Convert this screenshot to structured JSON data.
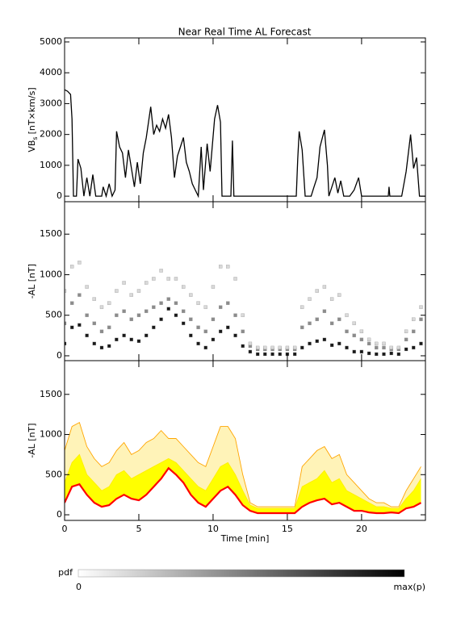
{
  "chart_data": [
    {
      "type": "line",
      "title": "Near Real Time AL Forecast",
      "ylabel": [
        "VB",
        "s",
        "[nT×km/s]"
      ],
      "color": "#000000",
      "xlim": [
        0,
        24.3
      ],
      "xticks": [
        0,
        5,
        10,
        15,
        20
      ],
      "ylim": [
        -180,
        5130
      ],
      "yticks": [
        0,
        1000,
        2000,
        3000,
        4000,
        5000
      ],
      "x": [
        0,
        0.2,
        0.4,
        0.5,
        0.6,
        0.8,
        0.9,
        1.1,
        1.3,
        1.5,
        1.7,
        1.9,
        2.1,
        2.3,
        2.5,
        2.6,
        2.8,
        3.0,
        3.2,
        3.4,
        3.5,
        3.7,
        3.9,
        4.1,
        4.3,
        4.5,
        4.7,
        4.9,
        5.1,
        5.3,
        5.5,
        5.8,
        6.0,
        6.2,
        6.4,
        6.6,
        6.8,
        7.0,
        7.2,
        7.4,
        7.6,
        7.8,
        8.0,
        8.2,
        8.4,
        8.6,
        8.8,
        9.0,
        9.2,
        9.35,
        9.6,
        9.8,
        10.1,
        10.3,
        10.5,
        10.6,
        11.2,
        11.3,
        11.4,
        15.6,
        15.7,
        15.8,
        16.0,
        16.2,
        16.6,
        16.8,
        17.0,
        17.2,
        17.5,
        17.7,
        17.8,
        18.2,
        18.4,
        18.6,
        18.8,
        19.2,
        19.5,
        19.8,
        20.0,
        21.8,
        21.85,
        21.9,
        22.7,
        23.0,
        23.3,
        23.5,
        23.7,
        23.9,
        24.3
      ],
      "values": [
        3450,
        3400,
        3300,
        2500,
        0,
        0,
        1200,
        900,
        0,
        600,
        0,
        700,
        0,
        0,
        0,
        300,
        0,
        400,
        0,
        200,
        2100,
        1600,
        1400,
        600,
        1500,
        900,
        300,
        1100,
        400,
        1400,
        1900,
        2900,
        2000,
        2300,
        2100,
        2500,
        2200,
        2650,
        1900,
        600,
        1300,
        1600,
        1900,
        1100,
        800,
        400,
        200,
        0,
        1600,
        200,
        1700,
        800,
        2500,
        2950,
        2400,
        0,
        0,
        1800,
        0,
        0,
        1200,
        2100,
        1500,
        0,
        0,
        300,
        600,
        1600,
        2150,
        1000,
        0,
        600,
        100,
        500,
        0,
        0,
        200,
        600,
        0,
        0,
        300,
        0,
        0,
        800,
        2000,
        900,
        1250,
        0,
        0
      ]
    },
    {
      "type": "density",
      "ylabel": "-AL [nT]",
      "xlim": [
        0,
        24.3
      ],
      "xticks": [
        0,
        5,
        10,
        15,
        20
      ],
      "ylim": [
        -60,
        1900
      ],
      "yticks": [
        0,
        500,
        1000,
        1500
      ],
      "x": [
        0,
        0.5,
        1,
        1.5,
        2,
        2.5,
        3,
        3.5,
        4,
        4.5,
        5,
        5.5,
        6,
        6.5,
        7,
        7.5,
        8,
        8.5,
        9,
        9.5,
        10,
        10.5,
        11,
        11.5,
        12,
        12.5,
        13,
        13.5,
        14,
        14.5,
        15,
        15.5,
        16,
        16.5,
        17,
        17.5,
        18,
        18.5,
        19,
        19.5,
        20,
        20.5,
        21,
        21.5,
        22,
        22.5,
        23,
        23.5,
        24
      ],
      "series": [
        {
          "weight": 0.9,
          "values": [
            150,
            350,
            380,
            250,
            150,
            100,
            120,
            200,
            250,
            200,
            180,
            250,
            350,
            450,
            580,
            500,
            400,
            250,
            150,
            100,
            200,
            300,
            350,
            250,
            120,
            50,
            20,
            20,
            20,
            20,
            20,
            20,
            100,
            150,
            180,
            200,
            130,
            150,
            100,
            50,
            50,
            30,
            20,
            20,
            30,
            20,
            80,
            100,
            150
          ]
        },
        {
          "weight": 0.45,
          "values": [
            400,
            650,
            750,
            500,
            400,
            300,
            350,
            500,
            550,
            450,
            500,
            550,
            600,
            650,
            700,
            650,
            550,
            450,
            350,
            300,
            450,
            600,
            650,
            500,
            300,
            120,
            80,
            80,
            80,
            80,
            80,
            80,
            350,
            400,
            450,
            550,
            400,
            450,
            300,
            250,
            200,
            150,
            100,
            100,
            80,
            80,
            200,
            300,
            450
          ]
        },
        {
          "weight": 0.15,
          "values": [
            800,
            1100,
            1150,
            850,
            700,
            600,
            650,
            800,
            900,
            750,
            800,
            900,
            950,
            1050,
            950,
            950,
            850,
            750,
            650,
            600,
            850,
            1100,
            1100,
            950,
            500,
            150,
            100,
            100,
            100,
            100,
            100,
            100,
            600,
            700,
            800,
            850,
            700,
            750,
            500,
            400,
            300,
            200,
            150,
            150,
            100,
            100,
            300,
            450,
            600
          ]
        }
      ]
    },
    {
      "type": "band",
      "ylabel": "-AL [nT]",
      "xlabel": "Time [min]",
      "xlim": [
        0,
        24.3
      ],
      "xticks": [
        0,
        5,
        10,
        15,
        20
      ],
      "ylim": [
        -70,
        1920
      ],
      "yticks": [
        0,
        500,
        1000,
        1500
      ],
      "x": [
        0,
        0.5,
        1,
        1.5,
        2,
        2.5,
        3,
        3.5,
        4,
        4.5,
        5,
        5.5,
        6,
        6.5,
        7,
        7.5,
        8,
        8.5,
        9,
        9.5,
        10,
        10.5,
        11,
        11.5,
        12,
        12.5,
        13,
        13.5,
        14,
        14.5,
        15,
        15.5,
        16,
        16.5,
        17,
        17.5,
        18,
        18.5,
        19,
        19.5,
        20,
        20.5,
        21,
        21.5,
        22,
        22.5,
        23,
        23.5,
        24
      ],
      "series": [
        {
          "color": "#ffa500",
          "fill": "#fff3b8",
          "values": [
            800,
            1100,
            1150,
            850,
            700,
            600,
            650,
            800,
            900,
            750,
            800,
            900,
            950,
            1050,
            950,
            950,
            850,
            750,
            650,
            600,
            850,
            1100,
            1100,
            950,
            500,
            150,
            100,
            100,
            100,
            100,
            100,
            100,
            600,
            700,
            800,
            850,
            700,
            750,
            500,
            400,
            300,
            200,
            150,
            150,
            100,
            100,
            300,
            450,
            600
          ]
        },
        {
          "color": "#ffee00",
          "fill": "#ffff00",
          "values": [
            400,
            650,
            750,
            500,
            400,
            300,
            350,
            500,
            550,
            450,
            500,
            550,
            600,
            650,
            700,
            650,
            550,
            450,
            350,
            300,
            450,
            600,
            650,
            500,
            300,
            120,
            80,
            80,
            80,
            80,
            80,
            80,
            350,
            400,
            450,
            550,
            400,
            450,
            300,
            250,
            200,
            150,
            100,
            100,
            80,
            80,
            200,
            300,
            450
          ]
        },
        {
          "color": "#ff0000",
          "fill": "#ffffff",
          "values": [
            150,
            350,
            380,
            250,
            150,
            100,
            120,
            200,
            250,
            200,
            180,
            250,
            350,
            450,
            580,
            500,
            400,
            250,
            150,
            100,
            200,
            300,
            350,
            250,
            120,
            50,
            20,
            20,
            20,
            20,
            20,
            20,
            100,
            150,
            180,
            200,
            130,
            150,
            100,
            50,
            50,
            30,
            20,
            20,
            30,
            20,
            80,
            100,
            150
          ]
        }
      ]
    },
    {
      "type": "colorbar",
      "label": "pdf",
      "min_label": "0",
      "max_label": "max(p)",
      "colors": [
        "#ffffff",
        "#000000"
      ]
    }
  ]
}
